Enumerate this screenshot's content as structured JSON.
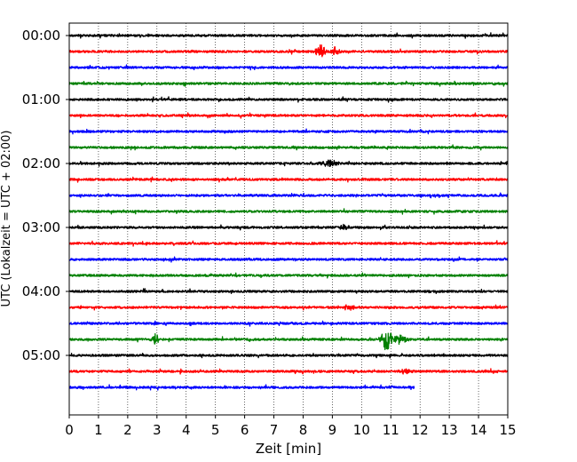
{
  "chart_data": {
    "type": "line",
    "title": "",
    "xlabel": "Zeit  [min]",
    "ylabel": "UTC (Lokalzeit = UTC + 02:00)",
    "xlim": [
      0,
      15
    ],
    "x_ticks": [
      0,
      1,
      2,
      3,
      4,
      5,
      6,
      7,
      8,
      9,
      10,
      11,
      12,
      13,
      14,
      15
    ],
    "x_tick_labels": [
      "0",
      "1",
      "2",
      "3",
      "4",
      "5",
      "6",
      "7",
      "8",
      "9",
      "10",
      "11",
      "12",
      "13",
      "14",
      "15"
    ],
    "y_tick_labels": [
      "00:00",
      "01:00",
      "02:00",
      "03:00",
      "04:00",
      "05:00"
    ],
    "rows_per_hour": 4,
    "minutes_per_row": 15,
    "grid_x": true,
    "trace_colors": [
      "#000000",
      "#ff0000",
      "#0000ff",
      "#008000"
    ],
    "traces": [
      {
        "row": 0,
        "end_min": 15
      },
      {
        "row": 1,
        "end_min": 15,
        "events": [
          {
            "t": 8.6,
            "amp": 0.75,
            "width": 0.45
          },
          {
            "t": 9.1,
            "amp": 0.45,
            "width": 0.4
          }
        ]
      },
      {
        "row": 2,
        "end_min": 15
      },
      {
        "row": 3,
        "end_min": 15
      },
      {
        "row": 4,
        "end_min": 15
      },
      {
        "row": 5,
        "end_min": 15
      },
      {
        "row": 6,
        "end_min": 15
      },
      {
        "row": 7,
        "end_min": 15
      },
      {
        "row": 8,
        "end_min": 15,
        "events": [
          {
            "t": 8.9,
            "amp": 0.35,
            "width": 0.8
          }
        ]
      },
      {
        "row": 9,
        "end_min": 15
      },
      {
        "row": 10,
        "end_min": 15
      },
      {
        "row": 11,
        "end_min": 15
      },
      {
        "row": 12,
        "end_min": 15,
        "events": [
          {
            "t": 9.4,
            "amp": 0.3,
            "width": 0.4
          }
        ]
      },
      {
        "row": 13,
        "end_min": 15
      },
      {
        "row": 14,
        "end_min": 15
      },
      {
        "row": 15,
        "end_min": 15
      },
      {
        "row": 16,
        "end_min": 15
      },
      {
        "row": 17,
        "end_min": 15,
        "events": [
          {
            "t": 9.6,
            "amp": 0.3,
            "width": 0.6
          }
        ]
      },
      {
        "row": 18,
        "end_min": 15
      },
      {
        "row": 19,
        "end_min": 15,
        "events": [
          {
            "t": 2.95,
            "amp": 0.55,
            "width": 0.4
          },
          {
            "t": 10.85,
            "amp": 1.3,
            "width": 0.5
          },
          {
            "t": 11.3,
            "amp": 0.5,
            "width": 0.6
          }
        ]
      },
      {
        "row": 20,
        "end_min": 15
      },
      {
        "row": 21,
        "end_min": 15,
        "events": [
          {
            "t": 11.5,
            "amp": 0.3,
            "width": 0.5
          }
        ]
      },
      {
        "row": 22,
        "end_min": 11.8
      }
    ]
  }
}
